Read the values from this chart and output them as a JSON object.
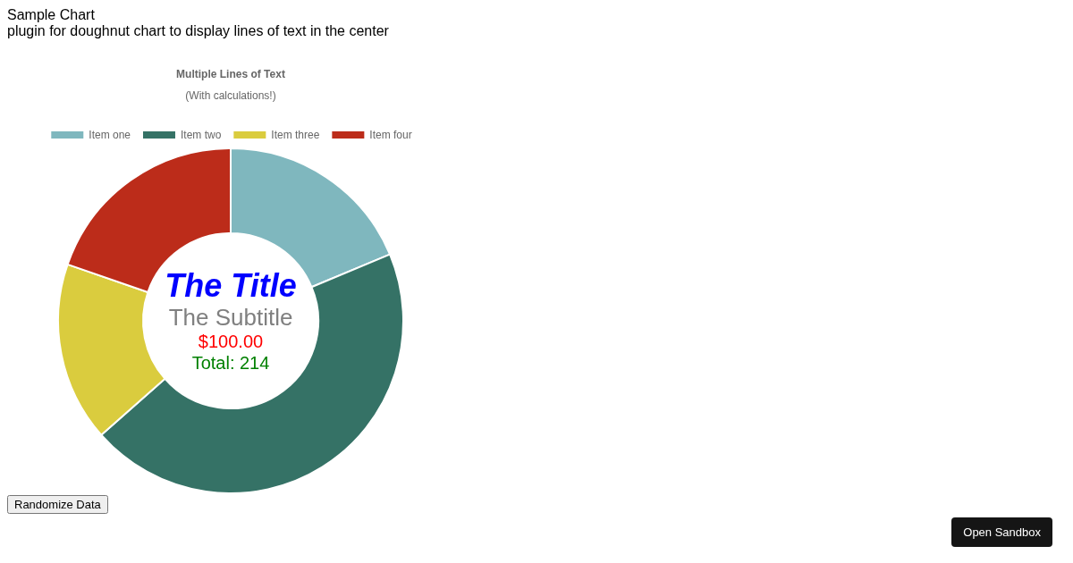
{
  "chart_data": {
    "type": "donut",
    "title": "Multiple Lines of Text",
    "subtitle": "(With calculations!)",
    "categories": [
      "Item one",
      "Item two",
      "Item three",
      "Item four"
    ],
    "values": [
      18.7,
      44.8,
      16.8,
      19.7
    ],
    "colors": [
      "#7fb7be",
      "#357266",
      "#dacc3e",
      "#bc2c1a"
    ],
    "legend": "top",
    "annotations": [
      "Sample Chart",
      "plugin for doughnut chart to display lines of text in the center",
      "The Title",
      "The Subtitle",
      "$100.00",
      "Total: 214",
      "Randomize Data",
      "Open Sandbox"
    ]
  }
}
